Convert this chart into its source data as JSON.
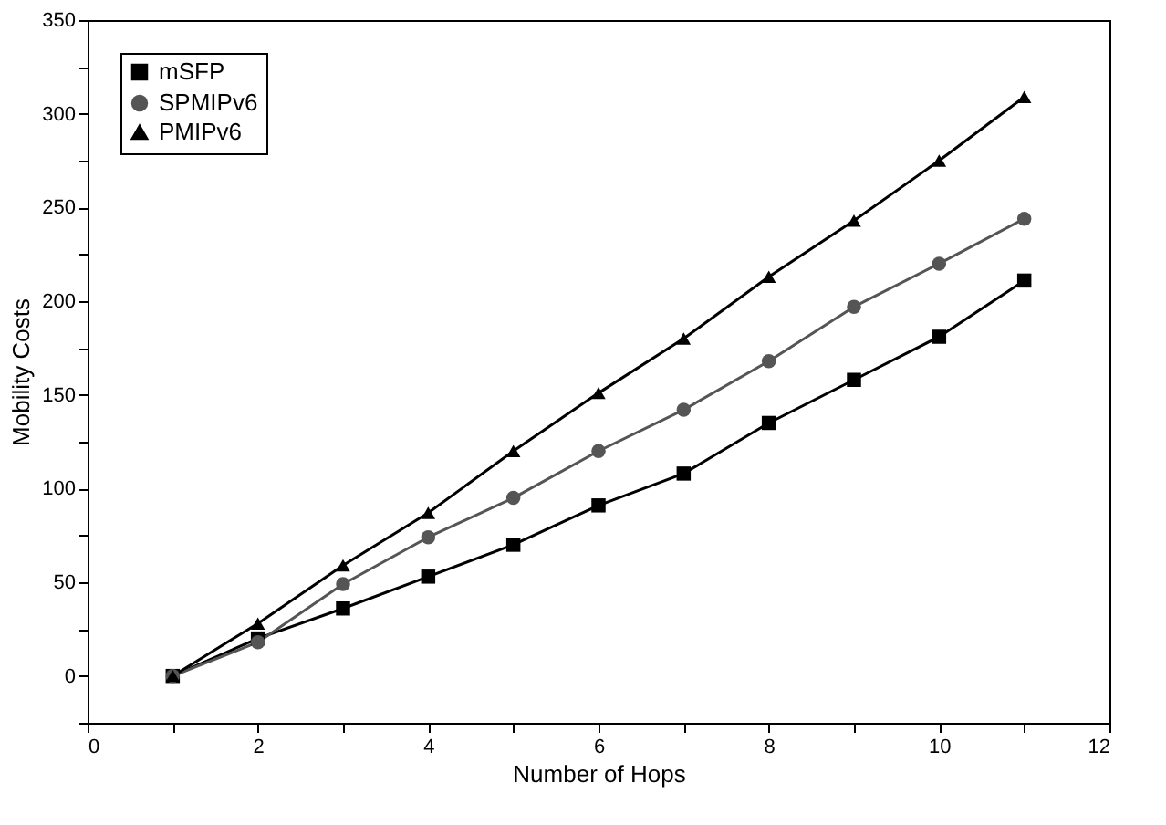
{
  "chart_data": {
    "type": "line",
    "xlabel": "Number of Hops",
    "ylabel": "Mobility Costs",
    "x": [
      1,
      2,
      3,
      4,
      5,
      6,
      7,
      8,
      9,
      10,
      11
    ],
    "series": [
      {
        "name": "mSFP",
        "color": "#000000",
        "marker": "square",
        "values": [
          0,
          20,
          36,
          53,
          70,
          91,
          108,
          135,
          158,
          181,
          211
        ]
      },
      {
        "name": "SPMIPv6",
        "color": "#555555",
        "marker": "circle",
        "values": [
          0,
          18,
          49,
          74,
          95,
          120,
          142,
          168,
          197,
          220,
          244
        ]
      },
      {
        "name": "PMIPv6",
        "color": "#000000",
        "marker": "triangle",
        "values": [
          0,
          28,
          59,
          87,
          120,
          151,
          180,
          213,
          243,
          275,
          309
        ]
      }
    ],
    "xlim": [
      0,
      12
    ],
    "xticks": [
      0,
      {
        "value": 1,
        "label": null
      },
      2,
      {
        "value": 3,
        "label": null
      },
      4,
      {
        "value": 5,
        "label": null
      },
      6,
      {
        "value": 7,
        "label": null
      },
      8,
      {
        "value": 9,
        "label": null
      },
      10,
      {
        "value": 11,
        "label": null
      },
      12
    ],
    "ylim": [
      -25,
      350
    ],
    "yticks": [
      {
        "value": -25,
        "label": null
      },
      0,
      {
        "value": 25,
        "label": null
      },
      50,
      {
        "value": 75,
        "label": null
      },
      100,
      {
        "value": 125,
        "label": null
      },
      150,
      {
        "value": 175,
        "label": null
      },
      200,
      {
        "value": 225,
        "label": null
      },
      250,
      {
        "value": 275,
        "label": null
      },
      300,
      {
        "value": 325,
        "label": null
      },
      350
    ],
    "grid": false,
    "legend": "top left",
    "line_style": "solid"
  }
}
